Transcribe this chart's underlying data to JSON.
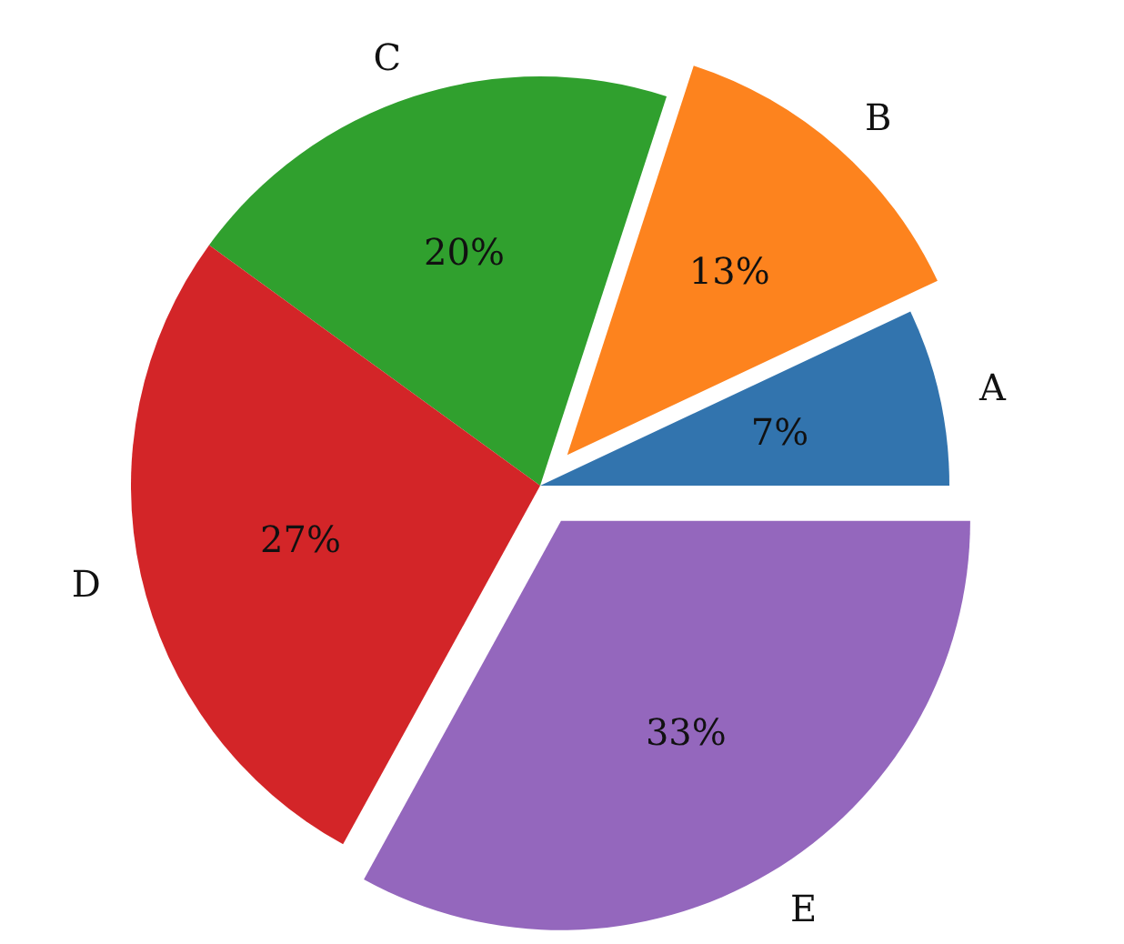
{
  "chart_data": {
    "type": "pie",
    "categories": [
      "A",
      "B",
      "C",
      "D",
      "E"
    ],
    "values": [
      7,
      13,
      20,
      27,
      33
    ],
    "colors": [
      "#3274ae",
      "#fd831e",
      "#30a02e",
      "#d32528",
      "#9467bd"
    ],
    "value_labels": [
      "7%",
      "13%",
      "20%",
      "27%",
      "33%"
    ]
  }
}
